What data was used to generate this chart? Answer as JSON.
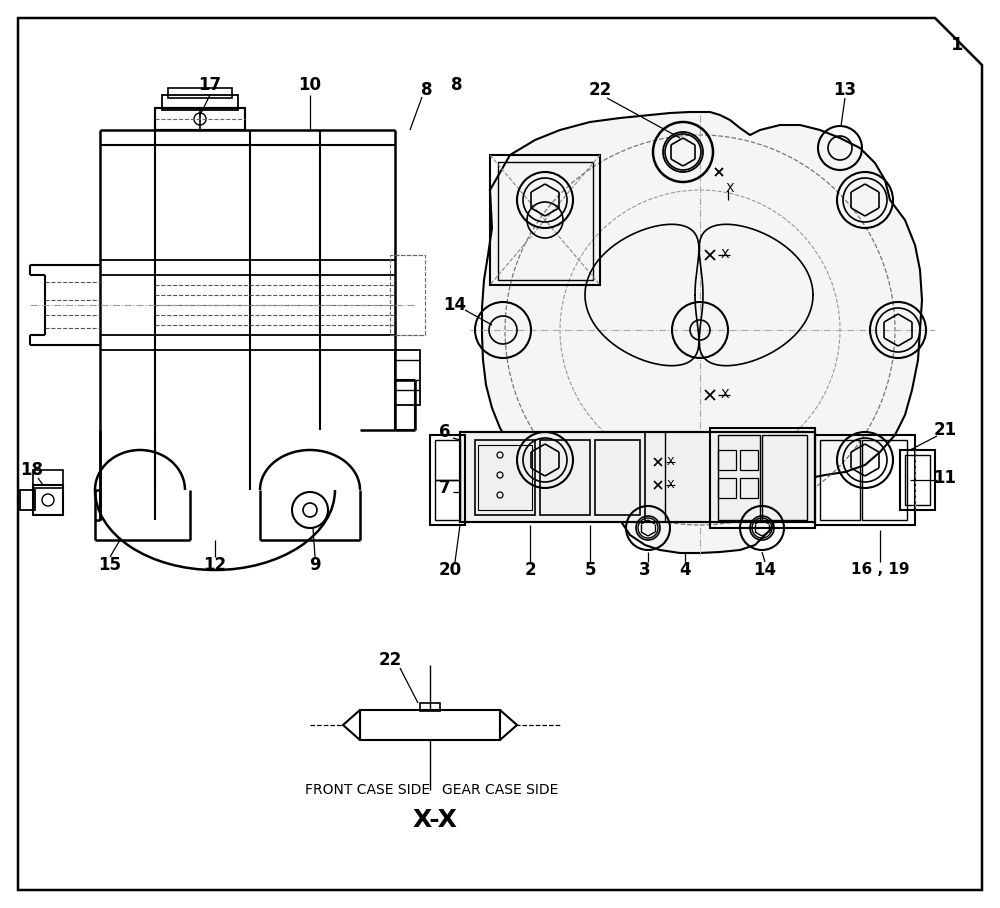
{
  "bg": "#ffffff",
  "lc": "#000000",
  "figsize": [
    10.0,
    9.08
  ],
  "dpi": 100,
  "bottom_label_left": "FRONT CASE SIDE",
  "bottom_label_right": "GEAR CASE SIDE",
  "bottom_section": "X-X"
}
